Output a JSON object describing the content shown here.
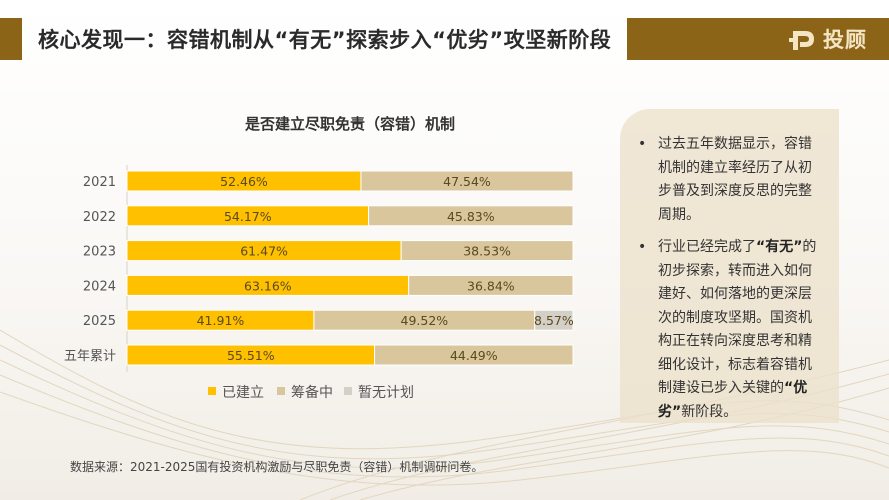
{
  "header": {
    "title": "核心发现一：容错机制从“有无”探索步入“优劣”攻坚新阶段",
    "brand": "投顾"
  },
  "source_note": "数据来源：2021-2025国有投资机构激励与尽职免责（容错）机制调研问卷。",
  "notes": [
    {
      "parts": [
        {
          "text": "过去五年数据显示，容错机制的建立率经历了从初步普及到深度反思的完整周期。",
          "bold": false
        }
      ]
    },
    {
      "parts": [
        {
          "text": "行业已经完成了",
          "bold": false
        },
        {
          "text": "“有无”",
          "bold": true
        },
        {
          "text": "的初步探索，转而进入如何建好、如何落地的更深层次的制度攻坚期。国资机构正在转向深度思考和精细化设计，标志着容错机制建设已步入关键的",
          "bold": false
        },
        {
          "text": "“优劣”",
          "bold": true
        },
        {
          "text": "新阶段。",
          "bold": false
        }
      ]
    }
  ],
  "colors": {
    "established": "#ffc000",
    "preparing": "#d9c69c",
    "none": "#d4d0c8",
    "brand": "#8c6418"
  },
  "chart_data": {
    "type": "bar",
    "orientation": "horizontal",
    "stacked": "percent",
    "title": "是否建立尽职免责（容错）机制",
    "categories": [
      "2021",
      "2022",
      "2023",
      "2024",
      "2025",
      "五年累计"
    ],
    "series": [
      {
        "name": "已建立",
        "values": [
          52.46,
          54.17,
          61.47,
          63.16,
          41.91,
          55.51
        ]
      },
      {
        "name": "筹备中",
        "values": [
          47.54,
          45.83,
          38.53,
          36.84,
          49.52,
          44.49
        ]
      },
      {
        "name": "暂无计划",
        "values": [
          0,
          0,
          0,
          0,
          8.57,
          0
        ]
      }
    ],
    "value_suffix": "%",
    "xlim": [
      0,
      100
    ],
    "legend_position": "bottom"
  }
}
